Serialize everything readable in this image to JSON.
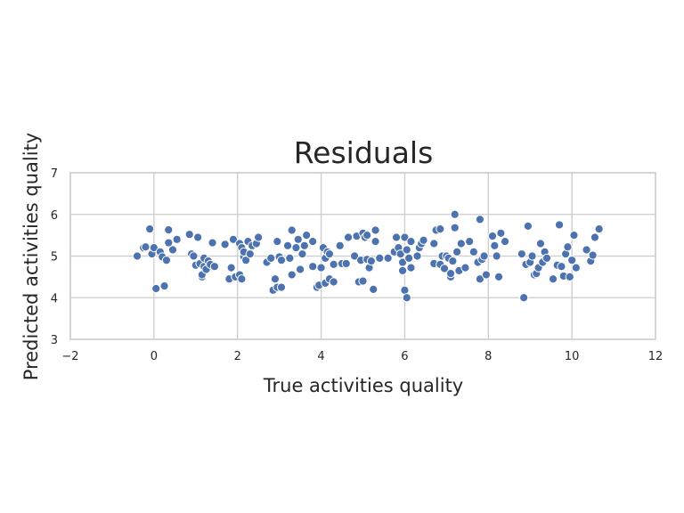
{
  "chart_data": {
    "type": "scatter",
    "title": "Residuals",
    "xlabel": "True activities quality",
    "ylabel": "Predicted activities quality",
    "xlim": [
      -2,
      12
    ],
    "ylim": [
      3,
      7
    ],
    "xticks": [
      "−2",
      "0",
      "2",
      "4",
      "6",
      "8",
      "10",
      "12"
    ],
    "yticks": [
      "3",
      "4",
      "5",
      "6",
      "7"
    ],
    "grid": true,
    "legend": "none",
    "color": "#4c72b0",
    "points": [
      [
        -0.4,
        5.0
      ],
      [
        -0.25,
        5.2
      ],
      [
        -0.2,
        5.22
      ],
      [
        -0.1,
        5.65
      ],
      [
        -0.05,
        5.05
      ],
      [
        0.0,
        5.2
      ],
      [
        0.05,
        4.22
      ],
      [
        0.15,
        5.1
      ],
      [
        0.2,
        4.98
      ],
      [
        0.25,
        4.28
      ],
      [
        0.3,
        4.9
      ],
      [
        0.35,
        5.63
      ],
      [
        0.35,
        5.32
      ],
      [
        0.45,
        5.15
      ],
      [
        0.55,
        5.4
      ],
      [
        0.85,
        5.52
      ],
      [
        0.9,
        5.05
      ],
      [
        0.95,
        5.0
      ],
      [
        1.0,
        4.78
      ],
      [
        1.05,
        5.45
      ],
      [
        1.1,
        4.82
      ],
      [
        1.15,
        4.5
      ],
      [
        1.15,
        4.55
      ],
      [
        1.2,
        4.75
      ],
      [
        1.2,
        4.95
      ],
      [
        1.25,
        4.68
      ],
      [
        1.3,
        4.88
      ],
      [
        1.35,
        4.8
      ],
      [
        1.4,
        5.32
      ],
      [
        1.45,
        4.75
      ],
      [
        1.7,
        5.28
      ],
      [
        1.8,
        4.45
      ],
      [
        1.85,
        4.72
      ],
      [
        1.9,
        5.4
      ],
      [
        1.95,
        4.5
      ],
      [
        2.05,
        4.55
      ],
      [
        2.05,
        5.3
      ],
      [
        2.1,
        4.45
      ],
      [
        2.1,
        5.2
      ],
      [
        2.15,
        4.98
      ],
      [
        2.15,
        5.1
      ],
      [
        2.2,
        4.9
      ],
      [
        2.25,
        5.35
      ],
      [
        2.3,
        5.05
      ],
      [
        2.35,
        5.25
      ],
      [
        2.45,
        5.3
      ],
      [
        2.5,
        5.45
      ],
      [
        2.7,
        4.85
      ],
      [
        2.8,
        4.95
      ],
      [
        2.85,
        4.18
      ],
      [
        2.9,
        4.45
      ],
      [
        2.95,
        5.35
      ],
      [
        2.95,
        4.25
      ],
      [
        3.0,
        4.98
      ],
      [
        3.05,
        4.9
      ],
      [
        3.05,
        4.25
      ],
      [
        3.2,
        5.25
      ],
      [
        3.25,
        4.95
      ],
      [
        3.3,
        4.55
      ],
      [
        3.3,
        5.62
      ],
      [
        3.4,
        5.2
      ],
      [
        3.45,
        5.4
      ],
      [
        3.5,
        4.68
      ],
      [
        3.55,
        5.05
      ],
      [
        3.6,
        5.25
      ],
      [
        3.65,
        5.5
      ],
      [
        3.8,
        4.75
      ],
      [
        3.8,
        5.35
      ],
      [
        3.9,
        4.25
      ],
      [
        3.95,
        4.3
      ],
      [
        4.0,
        4.72
      ],
      [
        4.05,
        5.2
      ],
      [
        4.1,
        4.35
      ],
      [
        4.1,
        4.95
      ],
      [
        4.15,
        5.1
      ],
      [
        4.2,
        5.05
      ],
      [
        4.2,
        4.45
      ],
      [
        4.3,
        4.38
      ],
      [
        4.3,
        4.8
      ],
      [
        4.45,
        5.25
      ],
      [
        4.5,
        4.82
      ],
      [
        4.6,
        4.82
      ],
      [
        4.65,
        5.45
      ],
      [
        4.8,
        5.0
      ],
      [
        4.85,
        5.48
      ],
      [
        4.9,
        4.38
      ],
      [
        4.95,
        4.9
      ],
      [
        5.0,
        5.55
      ],
      [
        5.0,
        4.4
      ],
      [
        5.05,
        5.45
      ],
      [
        5.1,
        4.92
      ],
      [
        5.1,
        5.5
      ],
      [
        5.15,
        4.72
      ],
      [
        5.2,
        4.88
      ],
      [
        5.25,
        4.2
      ],
      [
        5.3,
        5.35
      ],
      [
        5.3,
        5.62
      ],
      [
        5.4,
        4.95
      ],
      [
        5.6,
        4.95
      ],
      [
        5.75,
        5.1
      ],
      [
        5.8,
        5.45
      ],
      [
        5.85,
        5.2
      ],
      [
        5.9,
        5.05
      ],
      [
        5.95,
        4.85
      ],
      [
        5.95,
        4.65
      ],
      [
        6.0,
        4.18
      ],
      [
        6.0,
        5.45
      ],
      [
        6.05,
        5.15
      ],
      [
        6.05,
        4.0
      ],
      [
        6.1,
        4.95
      ],
      [
        6.15,
        4.72
      ],
      [
        6.15,
        5.35
      ],
      [
        6.3,
        5.0
      ],
      [
        6.35,
        5.2
      ],
      [
        6.4,
        5.3
      ],
      [
        6.45,
        5.38
      ],
      [
        6.7,
        4.82
      ],
      [
        6.7,
        5.3
      ],
      [
        6.75,
        5.62
      ],
      [
        6.85,
        4.8
      ],
      [
        6.85,
        5.65
      ],
      [
        6.9,
        5.0
      ],
      [
        6.95,
        4.7
      ],
      [
        7.0,
        5.0
      ],
      [
        7.05,
        4.95
      ],
      [
        7.1,
        4.5
      ],
      [
        7.1,
        4.58
      ],
      [
        7.15,
        4.88
      ],
      [
        7.2,
        6.0
      ],
      [
        7.2,
        5.68
      ],
      [
        7.25,
        5.1
      ],
      [
        7.3,
        4.65
      ],
      [
        7.35,
        5.3
      ],
      [
        7.45,
        4.72
      ],
      [
        7.55,
        5.35
      ],
      [
        7.65,
        5.1
      ],
      [
        7.75,
        4.85
      ],
      [
        7.8,
        5.88
      ],
      [
        7.8,
        4.45
      ],
      [
        7.85,
        4.92
      ],
      [
        7.9,
        5.0
      ],
      [
        7.95,
        4.55
      ],
      [
        8.1,
        5.48
      ],
      [
        8.15,
        5.25
      ],
      [
        8.2,
        5.0
      ],
      [
        8.25,
        4.5
      ],
      [
        8.3,
        5.55
      ],
      [
        8.4,
        5.35
      ],
      [
        8.8,
        5.05
      ],
      [
        8.85,
        4.0
      ],
      [
        8.9,
        4.8
      ],
      [
        8.95,
        5.72
      ],
      [
        9.0,
        4.85
      ],
      [
        9.05,
        5.0
      ],
      [
        9.1,
        4.55
      ],
      [
        9.15,
        4.58
      ],
      [
        9.2,
        4.72
      ],
      [
        9.25,
        5.3
      ],
      [
        9.3,
        4.85
      ],
      [
        9.35,
        5.1
      ],
      [
        9.4,
        4.95
      ],
      [
        9.55,
        4.45
      ],
      [
        9.65,
        4.78
      ],
      [
        9.7,
        5.75
      ],
      [
        9.75,
        4.75
      ],
      [
        9.8,
        4.52
      ],
      [
        9.85,
        5.05
      ],
      [
        9.9,
        5.22
      ],
      [
        9.95,
        4.5
      ],
      [
        10.0,
        4.9
      ],
      [
        10.05,
        5.5
      ],
      [
        10.1,
        4.72
      ],
      [
        10.35,
        5.15
      ],
      [
        10.45,
        4.88
      ],
      [
        10.5,
        5.02
      ],
      [
        10.55,
        5.45
      ],
      [
        10.65,
        5.65
      ]
    ]
  }
}
